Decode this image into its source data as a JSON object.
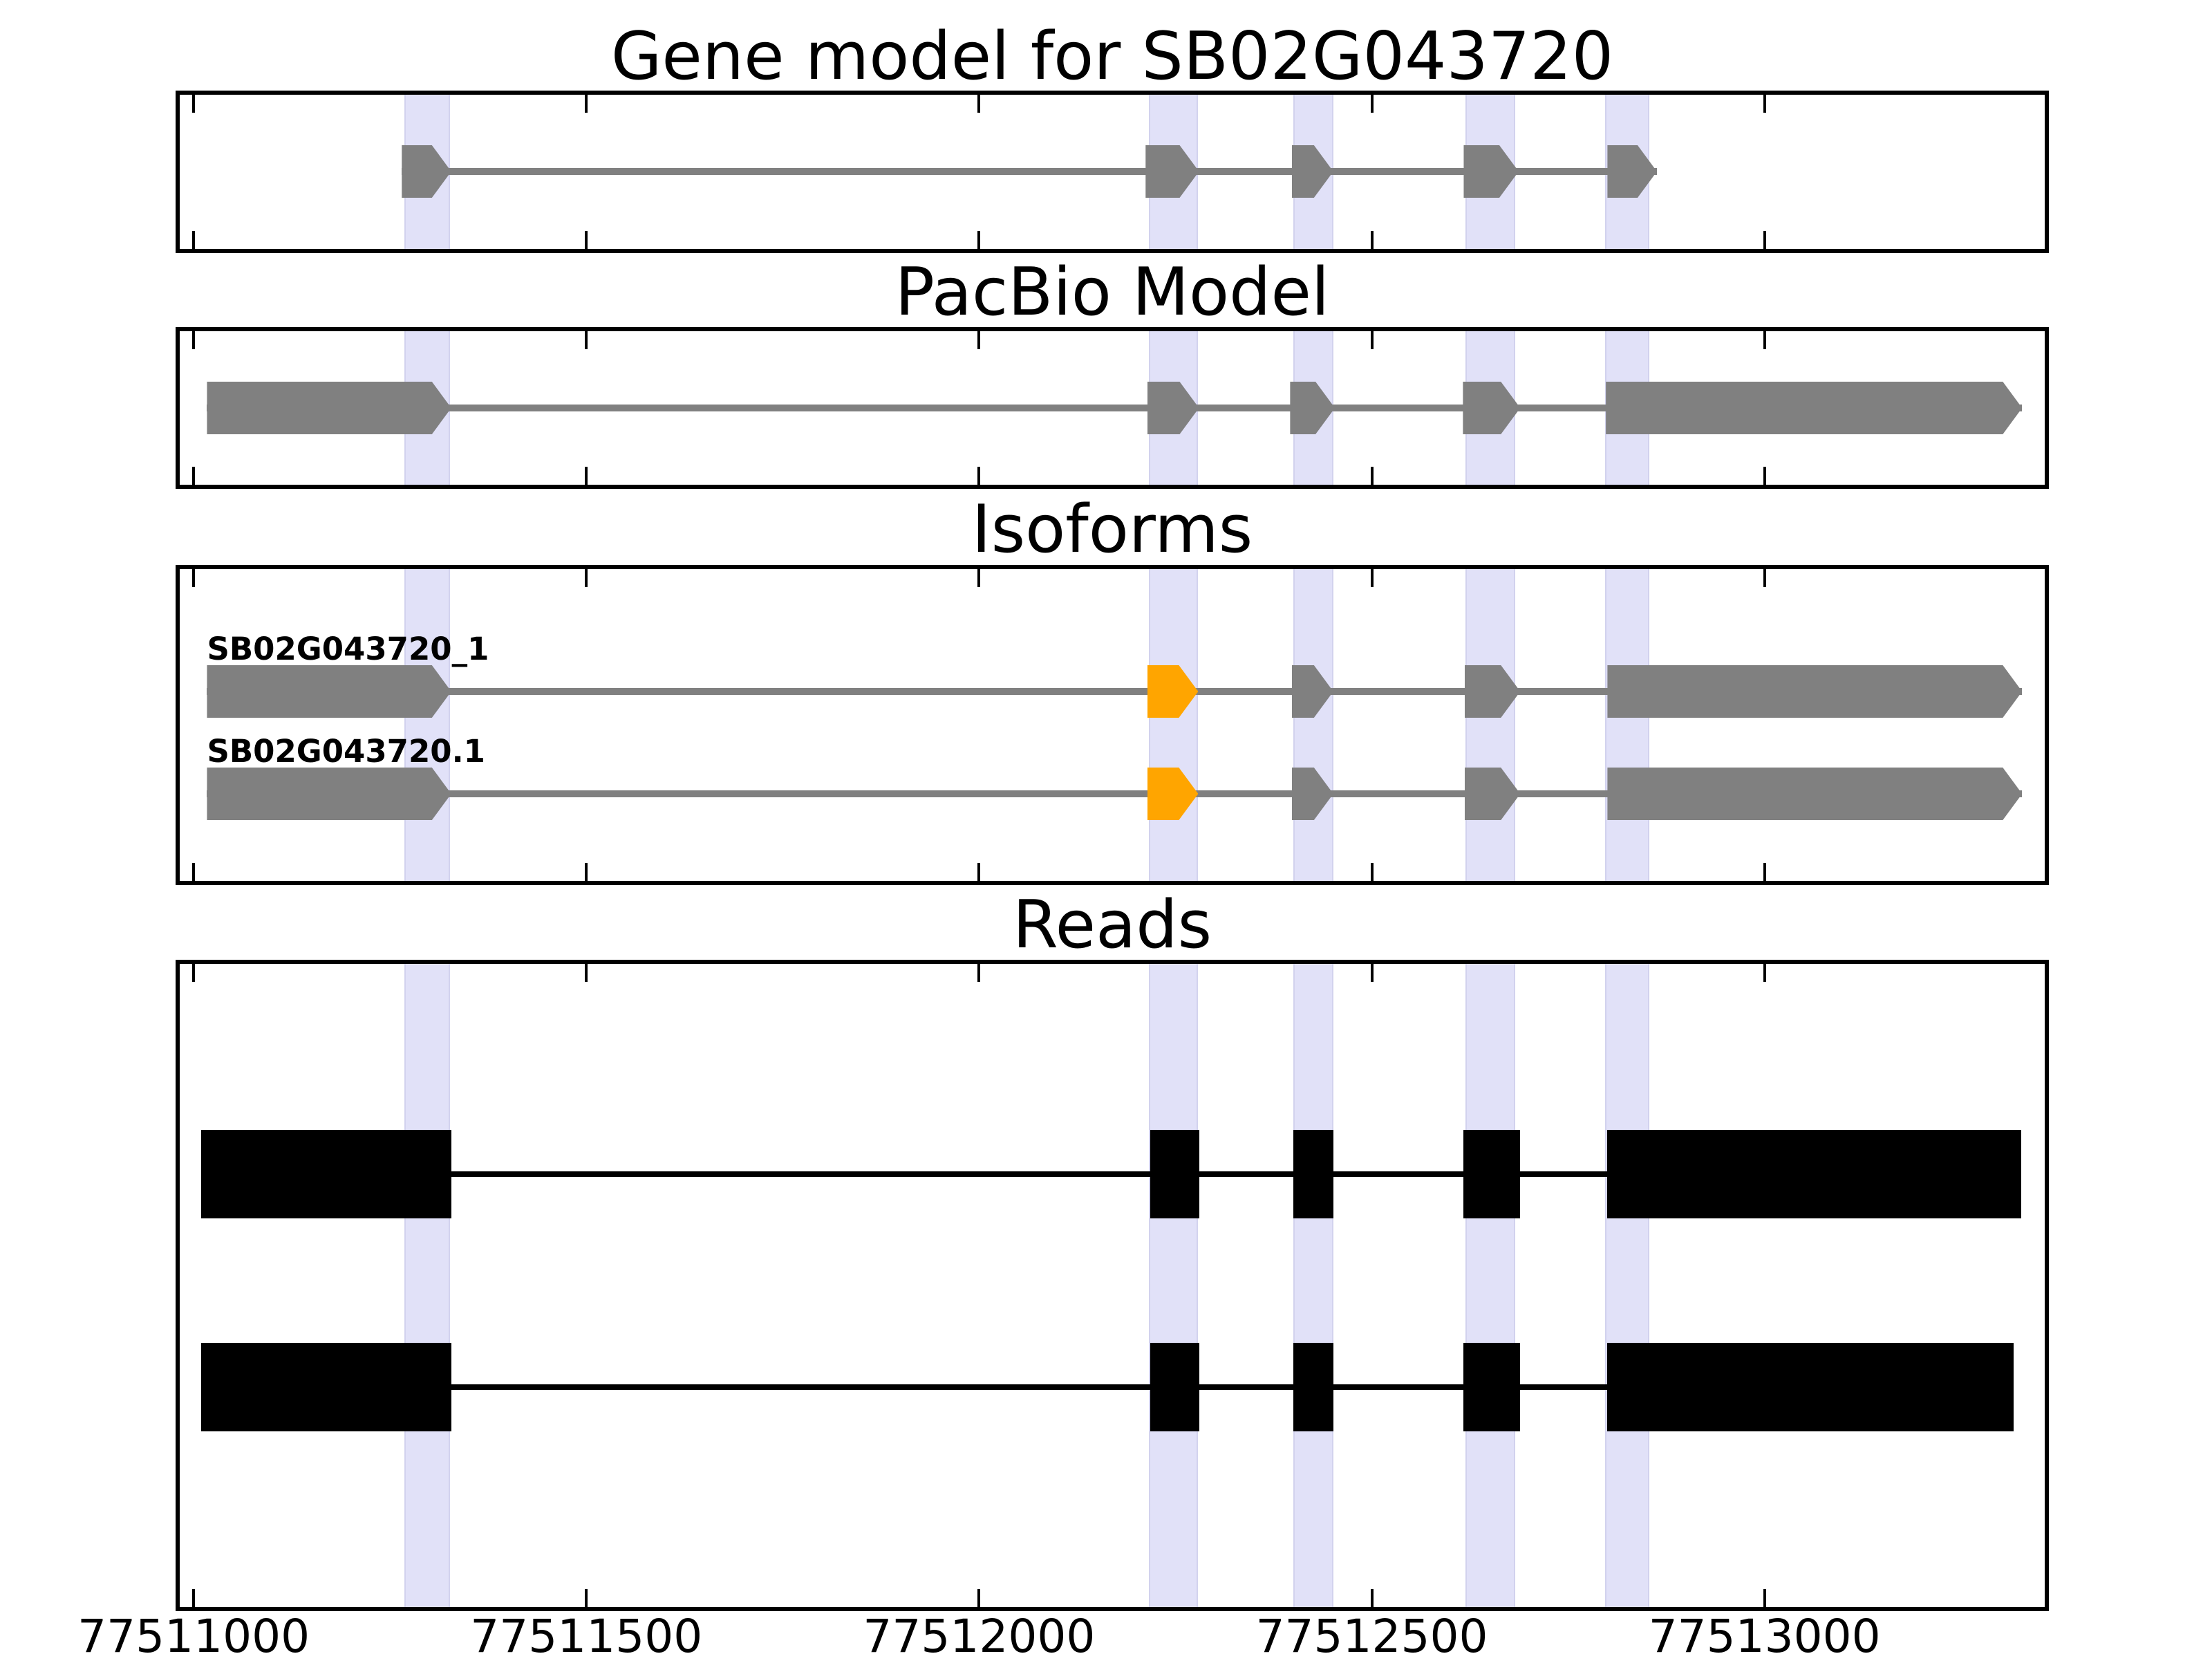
{
  "chart_data": {
    "type": "genomic-feature-tracks",
    "title": "Gene model for SB02G043720",
    "grid": false,
    "legend": null,
    "x_axis": {
      "domain_bp": [
        77510977,
        77513362
      ],
      "ticks": [
        {
          "bp": 77511000,
          "label": "77511000"
        },
        {
          "bp": 77511500,
          "label": "77511500"
        },
        {
          "bp": 77512000,
          "label": "77512000"
        },
        {
          "bp": 77512500,
          "label": "77512500"
        },
        {
          "bp": 77513000,
          "label": "77513000"
        }
      ]
    },
    "highlight_regions_bp": [
      [
        77511268,
        77511326
      ],
      [
        77512216,
        77512279
      ],
      [
        77512400,
        77512451
      ],
      [
        77512619,
        77512683
      ],
      [
        77512797,
        77512853
      ]
    ],
    "colors": {
      "exon_gray": "#808080",
      "exon_highlight_orange": "#FFA500",
      "read_black": "#000000",
      "band_fill": "#E1E1F8",
      "band_edge": "#D2D2EE",
      "axis": "#000000"
    },
    "panels": [
      {
        "key": "gene_model",
        "title": "Gene model for SB02G043720",
        "tracks": [
          {
            "label": "",
            "style": "model",
            "color": "#808080",
            "line_color": "#808080",
            "exons": [
              [
                77511265,
                77511328
              ],
              [
                77512212,
                77512280
              ],
              [
                77512398,
                77512451
              ],
              [
                77512617,
                77512687
              ],
              [
                77512800,
                77512863
              ]
            ]
          }
        ]
      },
      {
        "key": "pacbio",
        "title": "PacBio Model",
        "tracks": [
          {
            "label": "",
            "style": "model",
            "color": "#808080",
            "line_color": "#808080",
            "exons": [
              [
                77511017,
                77511328
              ],
              [
                77512214,
                77512280
              ],
              [
                77512396,
                77512453
              ],
              [
                77512616,
                77512689
              ],
              [
                77512798,
                77513328
              ]
            ]
          }
        ]
      },
      {
        "key": "isoforms",
        "title": "Isoforms",
        "tracks": [
          {
            "label": "SB02G043720_1",
            "style": "model",
            "color": "#808080",
            "line_color": "#808080",
            "exon_colors": [
              "#808080",
              "#FFA500",
              "#808080",
              "#808080",
              "#808080"
            ],
            "exons": [
              [
                77511017,
                77511328
              ],
              [
                77512214,
                77512279
              ],
              [
                77512398,
                77512451
              ],
              [
                77512618,
                77512689
              ],
              [
                77512800,
                77513328
              ]
            ]
          },
          {
            "label": "SB02G043720.1",
            "style": "model",
            "color": "#808080",
            "line_color": "#808080",
            "exon_colors": [
              "#808080",
              "#FFA500",
              "#808080",
              "#808080",
              "#808080"
            ],
            "exons": [
              [
                77511017,
                77511328
              ],
              [
                77512214,
                77512279
              ],
              [
                77512398,
                77512451
              ],
              [
                77512618,
                77512689
              ],
              [
                77512800,
                77513328
              ]
            ]
          }
        ]
      },
      {
        "key": "reads",
        "title": "Reads",
        "tracks": [
          {
            "label": "",
            "style": "read",
            "color": "#000000",
            "line_color": "#000000",
            "exons": [
              [
                77511010,
                77511328
              ],
              [
                77512218,
                77512280
              ],
              [
                77512400,
                77512451
              ],
              [
                77512617,
                77512689
              ],
              [
                77512800,
                77513327
              ]
            ]
          },
          {
            "label": "",
            "style": "read",
            "color": "#000000",
            "line_color": "#000000",
            "exons": [
              [
                77511010,
                77511328
              ],
              [
                77512218,
                77512280
              ],
              [
                77512400,
                77512451
              ],
              [
                77512617,
                77512689
              ],
              [
                77512800,
                77513317
              ]
            ]
          }
        ]
      }
    ]
  }
}
